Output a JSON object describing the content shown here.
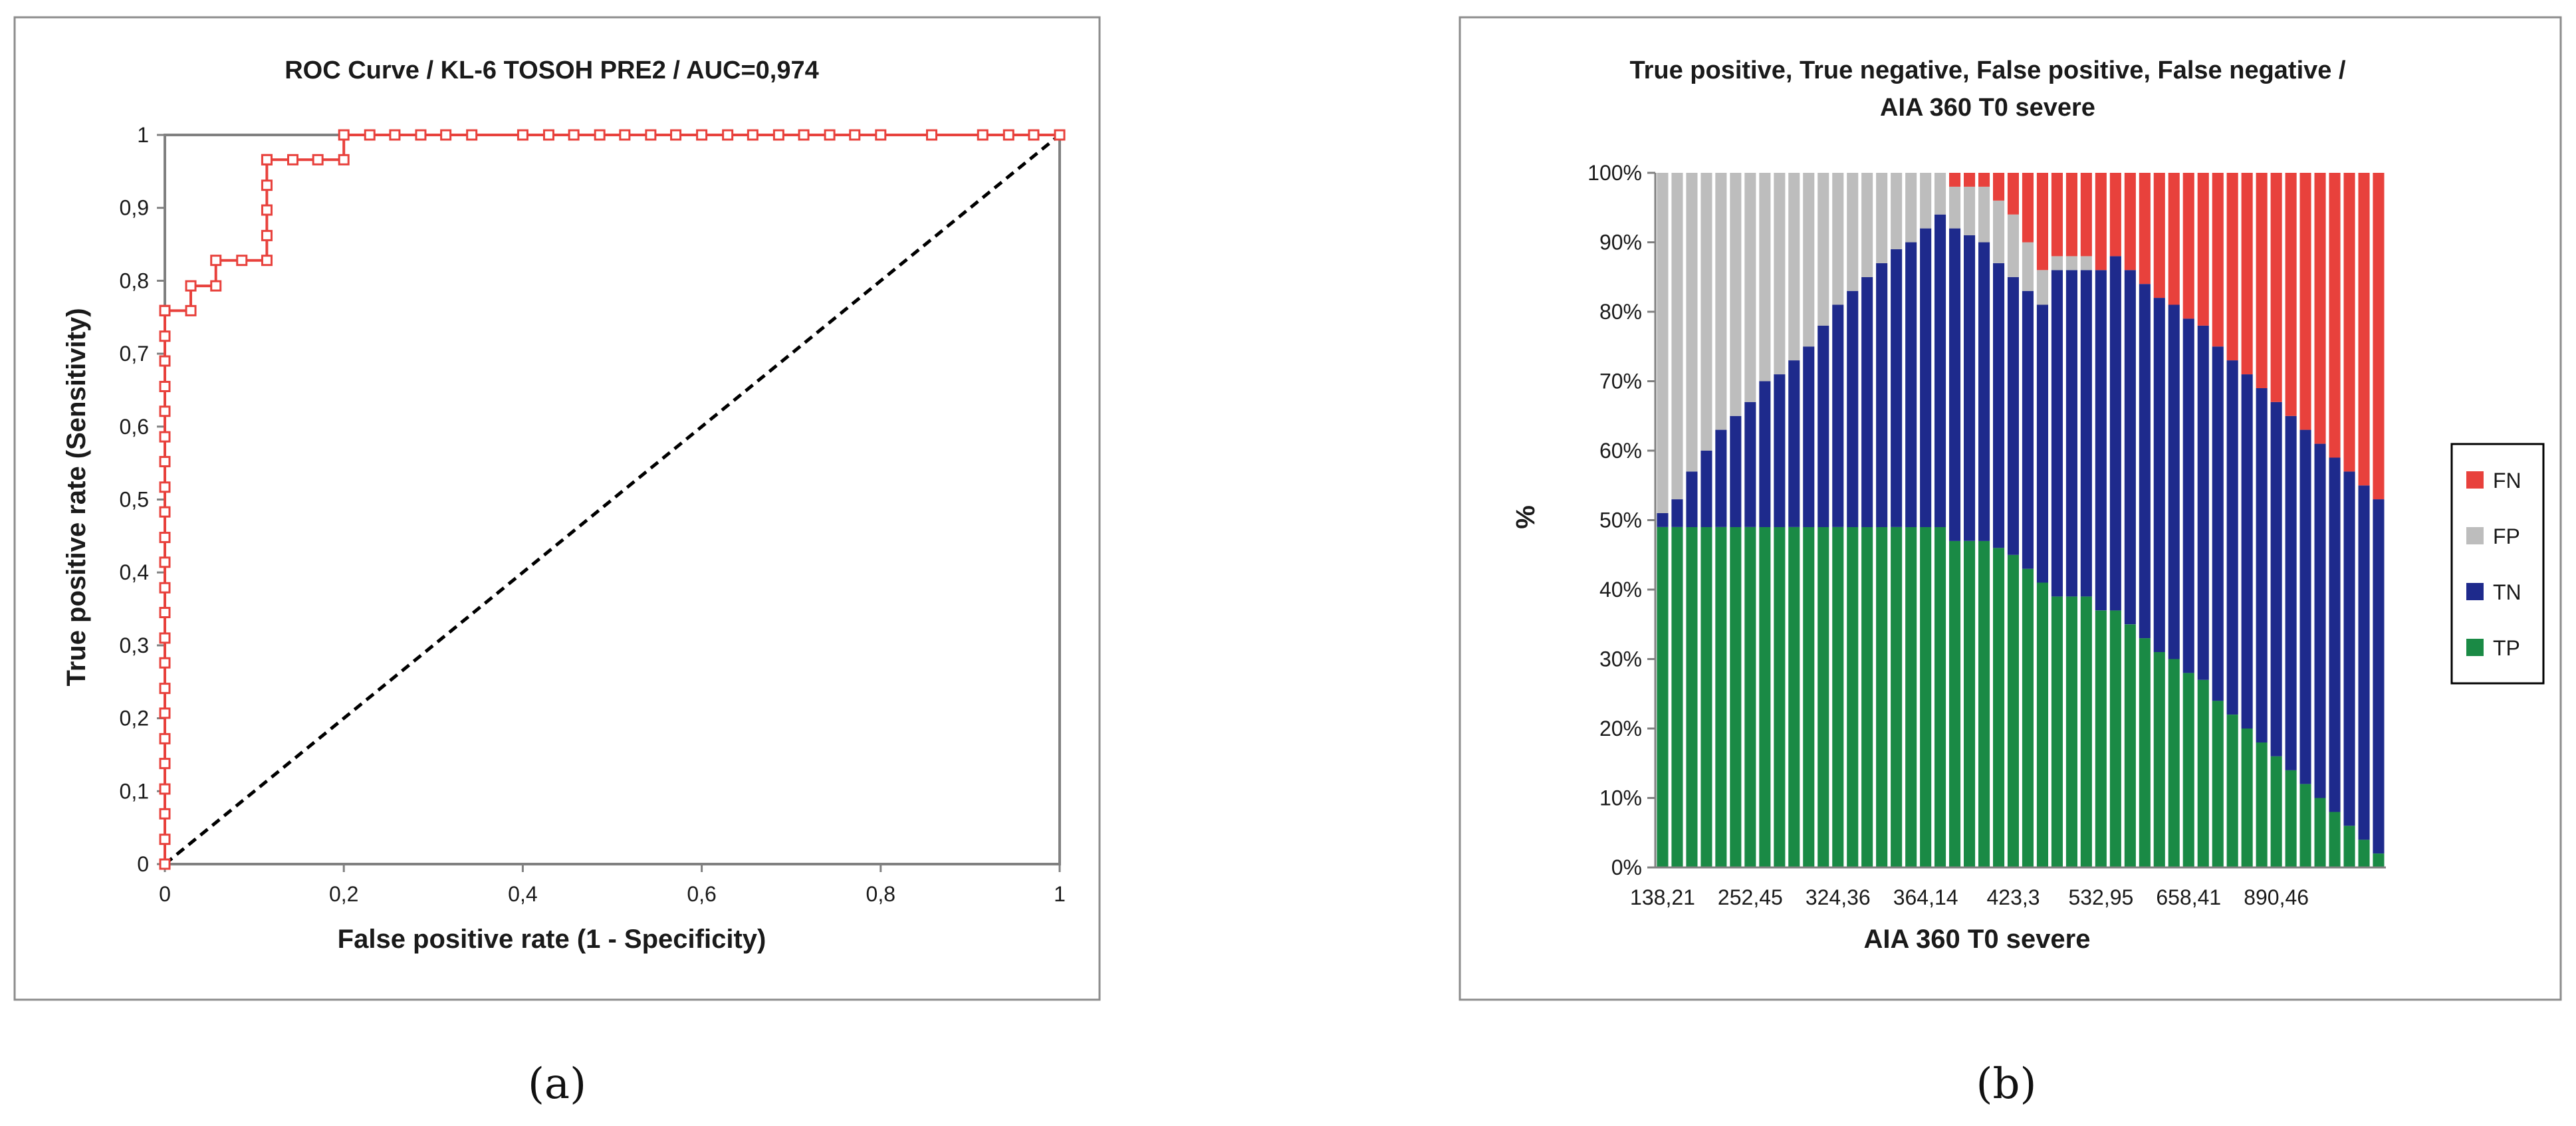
{
  "chart_data": [
    {
      "type": "line",
      "panel": "(a)",
      "title": "ROC Curve / KL-6 TOSOH PRE2 / AUC=0,974",
      "xlabel": "False positive rate (1 - Specificity)",
      "ylabel": "True positive rate (Sensitivity)",
      "xlim": [
        0,
        1
      ],
      "ylim": [
        0,
        1
      ],
      "x_ticks": [
        "0",
        "0,2",
        "0,4",
        "0,6",
        "0,8",
        "1"
      ],
      "y_ticks": [
        "0",
        "0,1",
        "0,2",
        "0,3",
        "0,4",
        "0,5",
        "0,6",
        "0,7",
        "0,8",
        "0,9",
        "1"
      ],
      "series": [
        {
          "name": "ROC",
          "color": "#e8413c",
          "marker": "open-square",
          "x": [
            0,
            0,
            0,
            0,
            0,
            0,
            0,
            0,
            0,
            0,
            0,
            0,
            0,
            0,
            0,
            0,
            0,
            0,
            0,
            0,
            0,
            0,
            0,
            0,
            0,
            0,
            0,
            0.029,
            0.029,
            0.057,
            0.057,
            0.086,
            0.114,
            0.114,
            0.114,
            0.114,
            0.114,
            0.114,
            0.143,
            0.171,
            0.2,
            0.2,
            0.229,
            0.257,
            0.286,
            0.314,
            0.343,
            0.4,
            0.429,
            0.457,
            0.486,
            0.514,
            0.543,
            0.571,
            0.6,
            0.629,
            0.657,
            0.686,
            0.714,
            0.743,
            0.771,
            0.8,
            0.857,
            0.914,
            0.943,
            0.971,
            1
          ],
          "y": [
            0,
            0.034,
            0.069,
            0.103,
            0.138,
            0.172,
            0.207,
            0.241,
            0.276,
            0.31,
            0.345,
            0.379,
            0.414,
            0.448,
            0.483,
            0.517,
            0.552,
            0.586,
            0.621,
            0.655,
            0.69,
            0.724,
            0.759,
            0.759,
            0.759,
            0.759,
            0.759,
            0.759,
            0.793,
            0.793,
            0.828,
            0.828,
            0.828,
            0.862,
            0.897,
            0.931,
            0.966,
            0.966,
            0.966,
            0.966,
            0.966,
            1,
            1,
            1,
            1,
            1,
            1,
            1,
            1,
            1,
            1,
            1,
            1,
            1,
            1,
            1,
            1,
            1,
            1,
            1,
            1,
            1,
            1,
            1,
            1,
            1,
            1
          ]
        },
        {
          "name": "Reference",
          "color": "#000000",
          "style": "dashed",
          "x": [
            0,
            1
          ],
          "y": [
            0,
            1
          ]
        }
      ]
    },
    {
      "type": "bar",
      "stacked": true,
      "panel": "(b)",
      "title": "True positive, True negative, False positive, False negative /",
      "title_line2": "AIA 360 T0 severe",
      "xlabel": "AIA 360  T0 severe",
      "ylabel": "%",
      "ylim": [
        0,
        100
      ],
      "y_ticks": [
        "0%",
        "10%",
        "20%",
        "30%",
        "40%",
        "50%",
        "60%",
        "70%",
        "80%",
        "90%",
        "100%"
      ],
      "x_tick_labels": [
        "138,21",
        "252,45",
        "324,36",
        "364,14",
        "423,3",
        "532,95",
        "658,41",
        "890,46"
      ],
      "category_count": 50,
      "legend_position": "right",
      "series": [
        {
          "name": "TP",
          "color": "#1a8a45",
          "values": [
            49,
            49,
            49,
            49,
            49,
            49,
            49,
            49,
            49,
            49,
            49,
            49,
            49,
            49,
            49,
            49,
            49,
            49,
            49,
            49,
            47,
            47,
            47,
            46,
            45,
            43,
            41,
            39,
            39,
            39,
            37,
            37,
            35,
            33,
            31,
            30,
            28,
            27,
            24,
            22,
            20,
            18,
            16,
            14,
            12,
            10,
            8,
            6,
            4,
            2
          ]
        },
        {
          "name": "TN",
          "color": "#1e2a8c",
          "values": [
            2,
            4,
            8,
            11,
            14,
            16,
            18,
            21,
            22,
            24,
            26,
            29,
            32,
            34,
            36,
            38,
            40,
            41,
            43,
            45,
            45,
            44,
            43,
            41,
            40,
            40,
            40,
            47,
            47,
            47,
            49,
            51,
            51,
            51,
            51,
            51,
            51,
            51,
            51,
            51,
            51,
            51,
            51,
            51,
            51,
            51,
            51,
            51,
            51,
            51
          ]
        },
        {
          "name": "FP",
          "color": "#bdbdbd",
          "values": [
            49,
            47,
            43,
            40,
            37,
            35,
            33,
            30,
            29,
            27,
            25,
            22,
            19,
            17,
            15,
            13,
            11,
            10,
            8,
            6,
            6,
            7,
            8,
            9,
            9,
            7,
            5,
            2,
            2,
            2,
            0,
            0,
            0,
            0,
            0,
            0,
            0,
            0,
            0,
            0,
            0,
            0,
            0,
            0,
            0,
            0,
            0,
            0,
            0,
            0
          ]
        },
        {
          "name": "FN",
          "color": "#e8413c",
          "values": [
            0,
            0,
            0,
            0,
            0,
            0,
            0,
            0,
            0,
            0,
            0,
            0,
            0,
            0,
            0,
            0,
            0,
            0,
            0,
            0,
            2,
            2,
            2,
            4,
            6,
            10,
            14,
            12,
            12,
            12,
            14,
            12,
            14,
            16,
            18,
            19,
            21,
            22,
            25,
            27,
            29,
            31,
            33,
            35,
            37,
            39,
            41,
            43,
            45,
            47
          ]
        }
      ]
    }
  ]
}
